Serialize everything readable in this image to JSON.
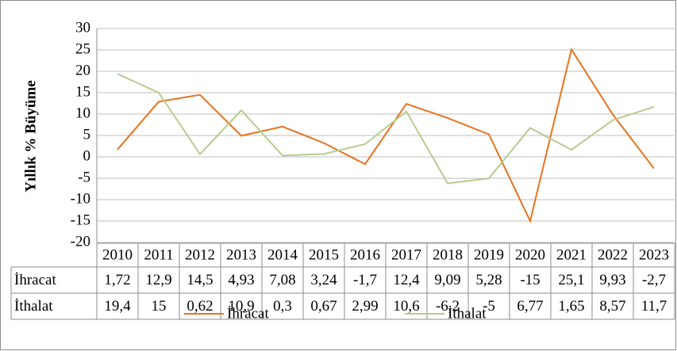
{
  "chart_data": {
    "type": "line",
    "ylabel": "Yıllık % Büyüme",
    "categories": [
      "2010",
      "2011",
      "2012",
      "2013",
      "2014",
      "2015",
      "2016",
      "2017",
      "2018",
      "2019",
      "2020",
      "2021",
      "2022",
      "2023"
    ],
    "series": [
      {
        "name": "İhracat",
        "color": "#e8731e",
        "values": [
          1.72,
          12.9,
          14.5,
          4.93,
          7.08,
          3.24,
          -1.7,
          12.4,
          9.09,
          5.28,
          -15,
          25.1,
          9.93,
          -2.7
        ],
        "value_labels": [
          "1,72",
          "12,9",
          "14,5",
          "4,93",
          "7,08",
          "3,24",
          "-1,7",
          "12,4",
          "9,09",
          "5,28",
          "-15",
          "25,1",
          "9,93",
          "-2,7"
        ]
      },
      {
        "name": "İthalat",
        "color": "#b5cc8e",
        "values": [
          19.4,
          15,
          0.62,
          10.9,
          0.3,
          0.67,
          2.99,
          10.6,
          -6.2,
          -5,
          6.77,
          1.65,
          8.57,
          11.7
        ],
        "value_labels": [
          "19,4",
          "15",
          "0,62",
          "10,9",
          "0,3",
          "0,67",
          "2,99",
          "10,6",
          "-6,2",
          "-5",
          "6,77",
          "1,65",
          "8,57",
          "11,7"
        ]
      }
    ],
    "ylim": [
      -20,
      30
    ],
    "yticks": [
      -20,
      -15,
      -10,
      -5,
      0,
      5,
      10,
      15,
      20,
      25,
      30
    ],
    "grid": true
  }
}
